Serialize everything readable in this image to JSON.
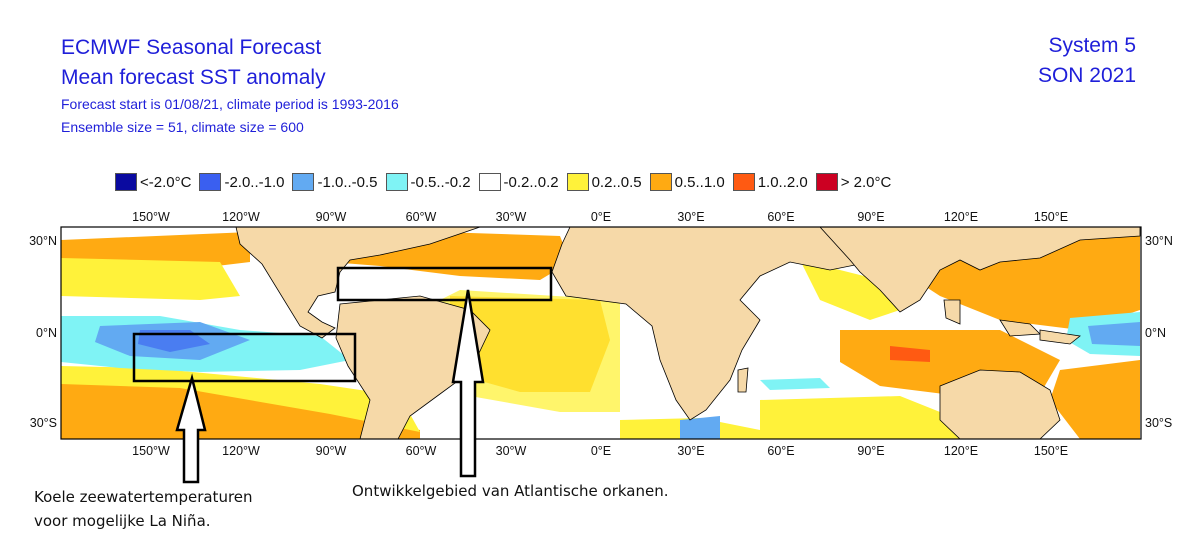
{
  "header": {
    "title_line1": "ECMWF Seasonal Forecast",
    "title_line2": "Mean forecast SST anomaly",
    "subtitle_line1": "Forecast start is 01/08/21, climate period is 1993-2016",
    "subtitle_line2": "Ensemble size = 51, climate size = 600",
    "system": "System 5",
    "period": "SON 2021"
  },
  "legend": [
    {
      "label": "<-2.0°C",
      "color": "#0a0aa0"
    },
    {
      "label": "-2.0..-1.0",
      "color": "#3a5ff0"
    },
    {
      "label": "-1.0..-0.5",
      "color": "#62aaf2"
    },
    {
      "label": "-0.5..-0.2",
      "color": "#7ff3f5"
    },
    {
      "label": "-0.2..0.2",
      "color": "#ffffff"
    },
    {
      "label": "0.2..0.5",
      "color": "#fff23a"
    },
    {
      "label": "0.5..1.0",
      "color": "#ffaa12"
    },
    {
      "label": "1.0..2.0",
      "color": "#ff5a12"
    },
    {
      "label": "> 2.0°C",
      "color": "#cc0022"
    }
  ],
  "map": {
    "lon_labels": [
      "150°W",
      "120°W",
      "90°W",
      "60°W",
      "30°W",
      "0°E",
      "30°E",
      "60°E",
      "90°E",
      "120°E",
      "150°E"
    ],
    "lat_labels_left": [
      "30°N",
      "0°N",
      "30°S"
    ],
    "lat_labels_right": [
      "30°N",
      "0°N",
      "30°S"
    ],
    "colors": {
      "ocean": "#ffffff",
      "land": "#f6d9a8",
      "border": "#000000"
    }
  },
  "annotations": {
    "note1_line1": "Koele zeewatertemperaturen",
    "note1_line2": "voor mogelijke La Niña.",
    "note2": "Ontwikkelgebied van Atlantische orkanen."
  }
}
